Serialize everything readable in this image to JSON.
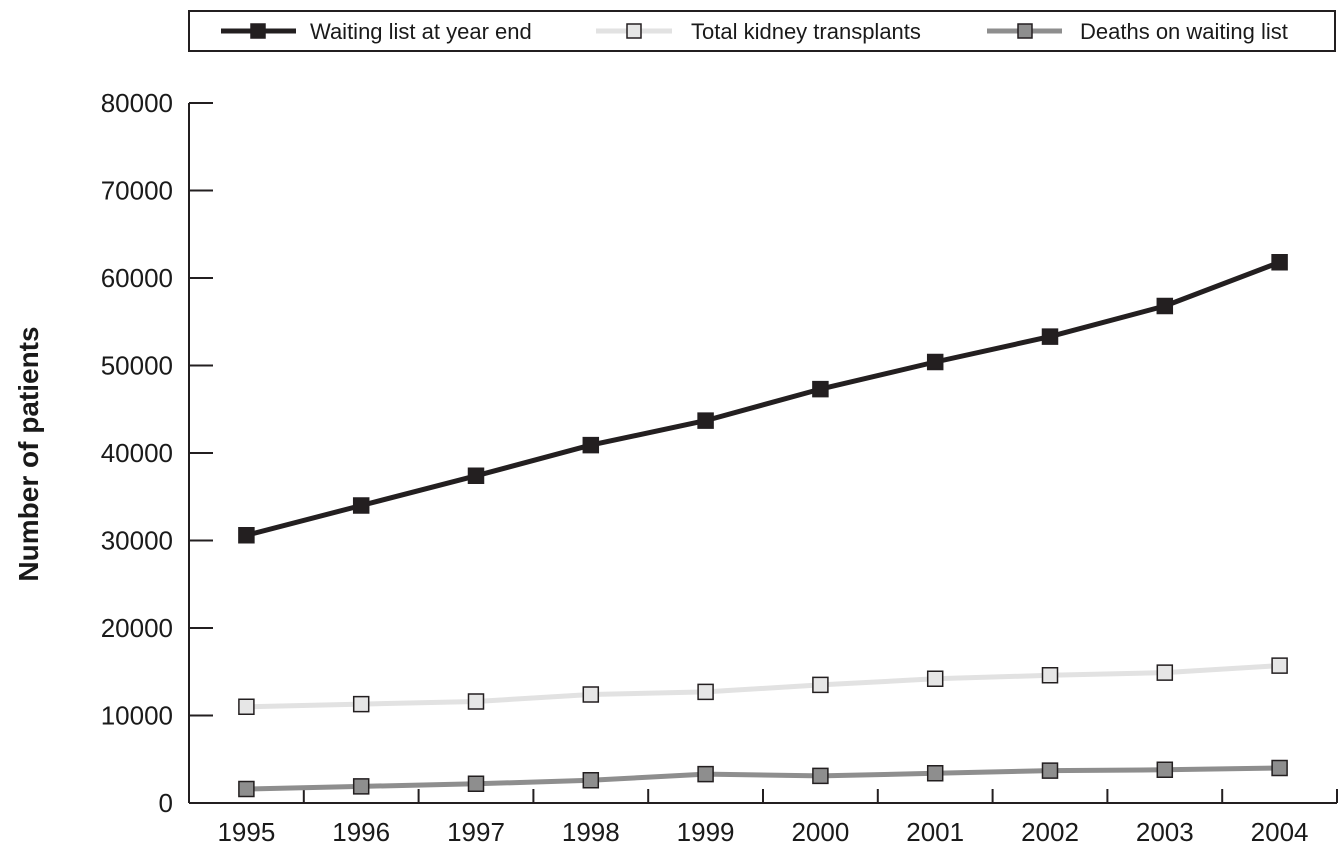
{
  "chart_data": {
    "type": "line",
    "title": "",
    "xlabel": "",
    "ylabel": "Number of patients",
    "x": [
      "1995",
      "1996",
      "1997",
      "1998",
      "1999",
      "2000",
      "2001",
      "2002",
      "2003",
      "2004"
    ],
    "ylim": [
      0,
      80000
    ],
    "yticks": [
      "0",
      "10000",
      "20000",
      "30000",
      "40000",
      "50000",
      "60000",
      "70000",
      "80000"
    ],
    "grid": false,
    "legend_position": "top",
    "series": [
      {
        "name": "Waiting list at year end",
        "line_color": "#231f20",
        "marker_fill": "#231f20",
        "values": [
          30600,
          34000,
          37400,
          40900,
          43700,
          47300,
          50400,
          53300,
          56800,
          61800
        ]
      },
      {
        "name": "Total kidney transplants",
        "line_color": "#e2e2e2",
        "marker_fill": "#e6e6e6",
        "values": [
          11000,
          11300,
          11600,
          12400,
          12700,
          13500,
          14200,
          14600,
          14900,
          15700
        ]
      },
      {
        "name": "Deaths on waiting list",
        "line_color": "#8e8e8e",
        "marker_fill": "#8e8e8e",
        "values": [
          1600,
          1900,
          2200,
          2600,
          3300,
          3100,
          3400,
          3700,
          3800,
          4000
        ]
      }
    ]
  }
}
